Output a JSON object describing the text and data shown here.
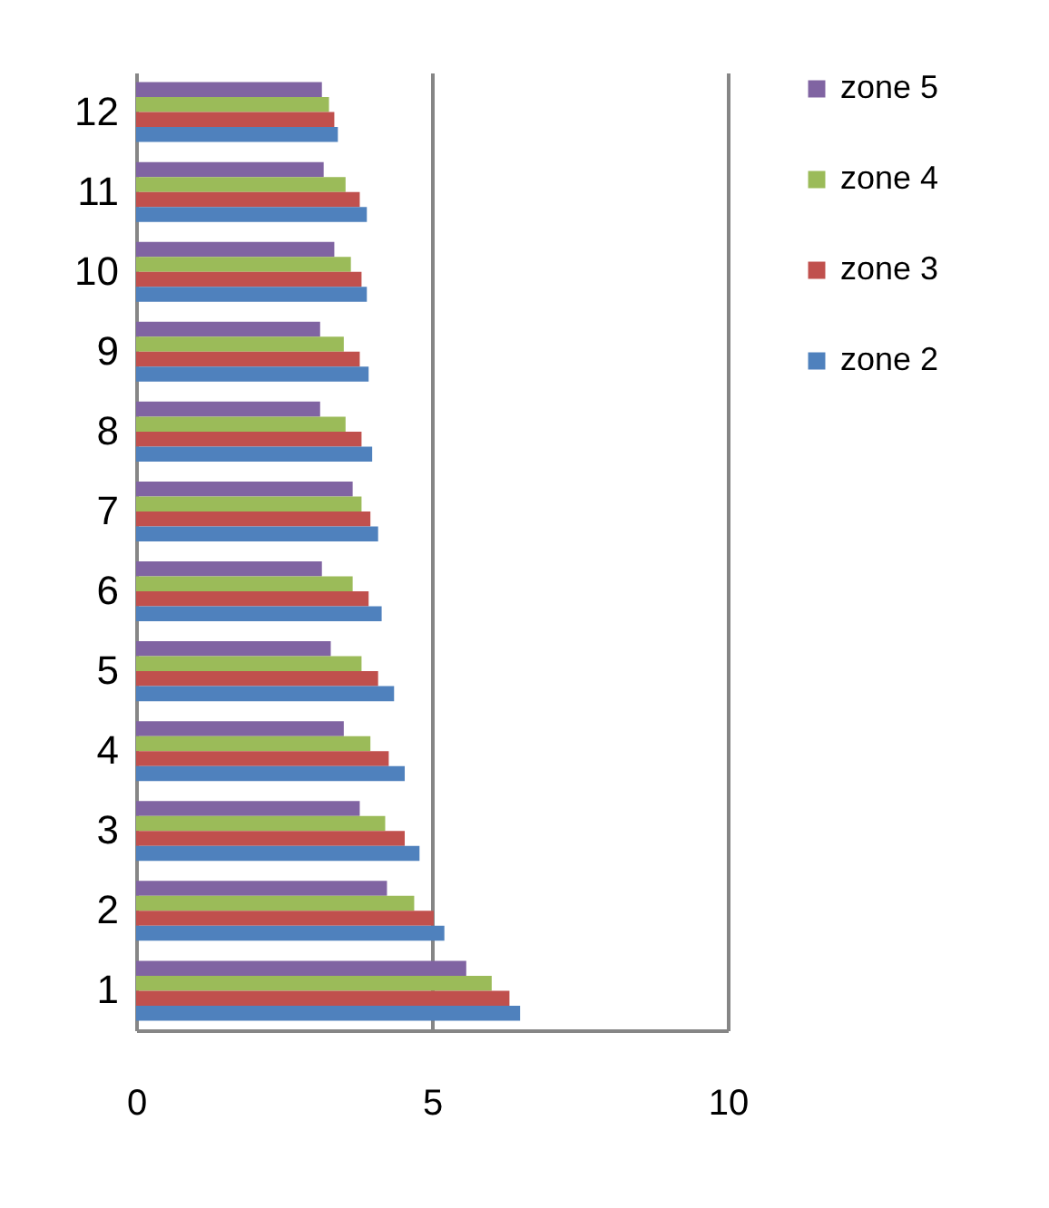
{
  "chart_data": {
    "type": "bar",
    "orientation": "horizontal",
    "categories": [
      "12",
      "11",
      "10",
      "9",
      "8",
      "7",
      "6",
      "5",
      "4",
      "3",
      "2",
      "1"
    ],
    "series": [
      {
        "name": "zone 5",
        "color": "#8064a2",
        "values": [
          3.14,
          3.17,
          3.35,
          3.11,
          3.11,
          3.66,
          3.14,
          3.29,
          3.51,
          3.78,
          4.24,
          5.58
        ]
      },
      {
        "name": "zone 4",
        "color": "#9bbb59",
        "values": [
          3.26,
          3.54,
          3.63,
          3.51,
          3.54,
          3.81,
          3.66,
          3.81,
          3.96,
          4.21,
          4.7,
          6.01
        ]
      },
      {
        "name": "zone 3",
        "color": "#c0504d",
        "values": [
          3.35,
          3.78,
          3.81,
          3.78,
          3.81,
          3.96,
          3.93,
          4.09,
          4.27,
          4.54,
          5.03,
          6.31
        ]
      },
      {
        "name": "zone 2",
        "color": "#4f81bd",
        "values": [
          3.41,
          3.9,
          3.9,
          3.93,
          3.99,
          4.09,
          4.15,
          4.36,
          4.54,
          4.79,
          5.21,
          6.49
        ]
      }
    ],
    "xlim": [
      0,
      10
    ],
    "xticks": [
      0,
      5,
      10
    ],
    "grid": "x",
    "legend": "right"
  }
}
